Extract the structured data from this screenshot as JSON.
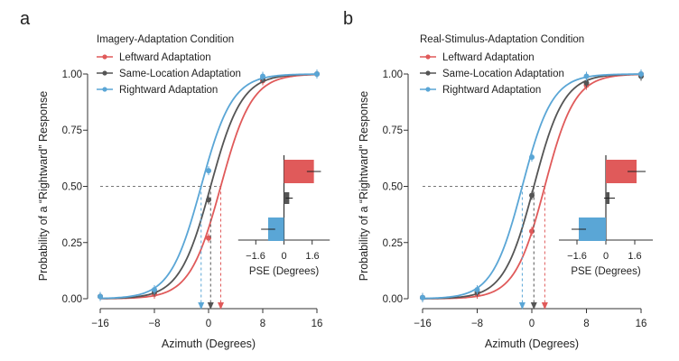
{
  "chart_data": [
    {
      "type": "line",
      "panel_label": "a",
      "title": "Imagery-Adaptation Condition",
      "xlabel": "Azimuth (Degrees)",
      "ylabel": "Probability of a “Rightward” Response",
      "xlim": [
        -16,
        16
      ],
      "ylim": [
        0,
        1
      ],
      "x_ticks": [
        -16,
        -8,
        0,
        8,
        16
      ],
      "x_tick_labels": [
        "−16",
        "−8",
        "0",
        "8",
        "16"
      ],
      "y_ticks": [
        0,
        0.25,
        0.5,
        0.75,
        1
      ],
      "y_tick_labels": [
        "0.00",
        "0.25",
        "0.50",
        "0.75",
        "1.00"
      ],
      "reference_line_y": 0.5,
      "legend_position": "top-left",
      "series": [
        {
          "name": "Leftward Adaptation",
          "color": "#e05a5a",
          "pse": 1.8,
          "slope": 2.3,
          "points": [
            {
              "x": -16,
              "y": 0.01
            },
            {
              "x": -8,
              "y": 0.02
            },
            {
              "x": 0,
              "y": 0.27
            },
            {
              "x": 8,
              "y": 0.97
            },
            {
              "x": 16,
              "y": 1.0
            }
          ]
        },
        {
          "name": "Same-Location Adaptation",
          "color": "#555555",
          "pse": 0.3,
          "slope": 2.3,
          "points": [
            {
              "x": -16,
              "y": 0.01
            },
            {
              "x": -8,
              "y": 0.03
            },
            {
              "x": 0,
              "y": 0.44
            },
            {
              "x": 8,
              "y": 0.98
            },
            {
              "x": 16,
              "y": 1.0
            }
          ]
        },
        {
          "name": "Rightward Adaptation",
          "color": "#5aa6d6",
          "pse": -1.1,
          "slope": 2.3,
          "points": [
            {
              "x": -16,
              "y": 0.01
            },
            {
              "x": -8,
              "y": 0.04
            },
            {
              "x": 0,
              "y": 0.57
            },
            {
              "x": 8,
              "y": 0.99
            },
            {
              "x": 16,
              "y": 1.0
            }
          ]
        }
      ],
      "inset": {
        "type": "bar",
        "xlabel": "PSE (Degrees)",
        "x_ticks": [
          -1.6,
          0,
          1.6
        ],
        "x_tick_labels": [
          "−1.6",
          "0",
          "1.6"
        ],
        "xlim": [
          -2.6,
          2.6
        ],
        "bars": [
          {
            "name": "Leftward Adaptation",
            "value": 1.7,
            "error": 0.4
          },
          {
            "name": "Same-Location Adaptation",
            "value": 0.3,
            "error": 0.2
          },
          {
            "name": "Rightward Adaptation",
            "value": -0.9,
            "error": 0.4
          }
        ]
      }
    },
    {
      "type": "line",
      "panel_label": "b",
      "title": "Real-Stimulus-Adaptation Condition",
      "xlabel": "Azimuth (Degrees)",
      "ylabel": "Probability of a “Rightward” Response",
      "xlim": [
        -16,
        16
      ],
      "ylim": [
        0,
        1
      ],
      "x_ticks": [
        -16,
        -8,
        0,
        8,
        16
      ],
      "x_tick_labels": [
        "−16",
        "−8",
        "0",
        "8",
        "16"
      ],
      "y_ticks": [
        0,
        0.25,
        0.5,
        0.75,
        1
      ],
      "y_tick_labels": [
        "0.00",
        "0.25",
        "0.50",
        "0.75",
        "1.00"
      ],
      "reference_line_y": 0.5,
      "legend_position": "top-left",
      "series": [
        {
          "name": "Leftward Adaptation",
          "color": "#e05a5a",
          "pse": 1.9,
          "slope": 2.2,
          "points": [
            {
              "x": -16,
              "y": 0.005
            },
            {
              "x": -8,
              "y": 0.02
            },
            {
              "x": 0,
              "y": 0.3
            },
            {
              "x": 8,
              "y": 0.95
            },
            {
              "x": 16,
              "y": 1.0
            }
          ]
        },
        {
          "name": "Same-Location Adaptation",
          "color": "#555555",
          "pse": 0.3,
          "slope": 2.2,
          "points": [
            {
              "x": -16,
              "y": 0.005
            },
            {
              "x": -8,
              "y": 0.03
            },
            {
              "x": 0,
              "y": 0.46
            },
            {
              "x": 8,
              "y": 0.96
            },
            {
              "x": 16,
              "y": 0.99
            }
          ]
        },
        {
          "name": "Rightward Adaptation",
          "color": "#5aa6d6",
          "pse": -1.4,
          "slope": 2.2,
          "points": [
            {
              "x": -16,
              "y": 0.005
            },
            {
              "x": -8,
              "y": 0.04
            },
            {
              "x": 0,
              "y": 0.63
            },
            {
              "x": 8,
              "y": 0.99
            },
            {
              "x": 16,
              "y": 1.0
            }
          ]
        }
      ],
      "inset": {
        "type": "bar",
        "xlabel": "PSE (Degrees)",
        "x_ticks": [
          -1.6,
          0,
          1.6
        ],
        "x_tick_labels": [
          "−1.6",
          "0",
          "1.6"
        ],
        "xlim": [
          -2.6,
          2.6
        ],
        "bars": [
          {
            "name": "Leftward Adaptation",
            "value": 1.7,
            "error": 0.5
          },
          {
            "name": "Same-Location Adaptation",
            "value": 0.2,
            "error": 0.3
          },
          {
            "name": "Rightward Adaptation",
            "value": -1.5,
            "error": 0.4
          }
        ]
      }
    }
  ]
}
